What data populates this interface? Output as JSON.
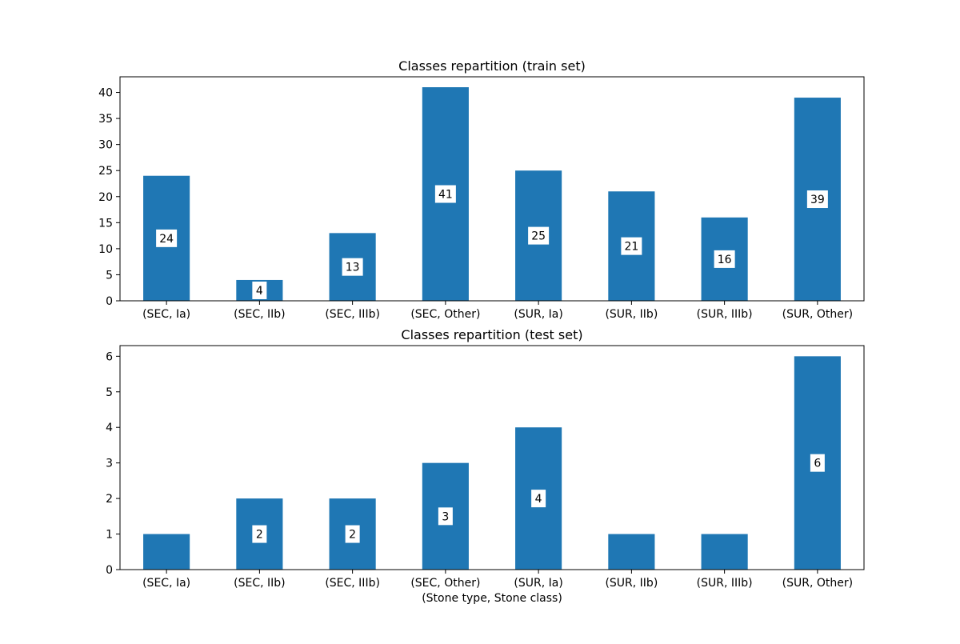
{
  "colors": {
    "bar": "#1f77b4",
    "axis": "#000000",
    "label_box": "#ffffff"
  },
  "chart_data": [
    {
      "type": "bar",
      "title": "Classes repartition (train set)",
      "xlabel": "",
      "ylabel": "",
      "categories": [
        "(SEC, Ia)",
        "(SEC, IIb)",
        "(SEC, IIIb)",
        "(SEC, Other)",
        "(SUR, Ia)",
        "(SUR, IIb)",
        "(SUR, IIIb)",
        "(SUR, Other)"
      ],
      "values": [
        24,
        4,
        13,
        41,
        25,
        21,
        16,
        39
      ],
      "data_labels": [
        "24",
        "4",
        "13",
        "41",
        "25",
        "21",
        "16",
        "39"
      ],
      "ylim": [
        0,
        43
      ],
      "yticks": [
        0,
        5,
        10,
        15,
        20,
        25,
        30,
        35,
        40
      ],
      "grid": false
    },
    {
      "type": "bar",
      "title": "Classes repartition (test set)",
      "xlabel": "(Stone type, Stone class)",
      "ylabel": "",
      "categories": [
        "(SEC, Ia)",
        "(SEC, IIb)",
        "(SEC, IIIb)",
        "(SEC, Other)",
        "(SUR, Ia)",
        "(SUR, IIb)",
        "(SUR, IIIb)",
        "(SUR, Other)"
      ],
      "values": [
        1,
        2,
        2,
        3,
        4,
        1,
        1,
        6
      ],
      "data_labels": [
        "",
        "2",
        "2",
        "3",
        "4",
        "",
        "",
        "6"
      ],
      "ylim": [
        0,
        6.3
      ],
      "yticks": [
        0,
        1,
        2,
        3,
        4,
        5,
        6
      ],
      "grid": false
    }
  ]
}
